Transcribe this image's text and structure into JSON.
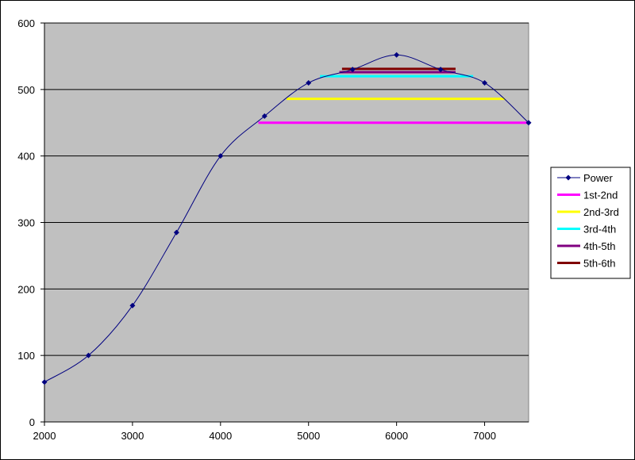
{
  "chart_data": {
    "type": "line",
    "title": "",
    "xlabel": "",
    "ylabel": "",
    "xlim": [
      2000,
      7500
    ],
    "ylim": [
      0,
      600
    ],
    "xticks": [
      2000,
      3000,
      4000,
      5000,
      6000,
      7000
    ],
    "yticks": [
      0,
      100,
      200,
      300,
      400,
      500,
      600
    ],
    "grid": "horizontal",
    "legend_position": "right",
    "plot_background": "#c0c0c0",
    "series": [
      {
        "name": "Power",
        "color": "#000080",
        "marker": "diamond",
        "x": [
          2000,
          2500,
          3000,
          3500,
          4000,
          4500,
          5000,
          5500,
          6000,
          6500,
          7000,
          7500
        ],
        "y": [
          60,
          100,
          175,
          285,
          400,
          460,
          510,
          530,
          552,
          530,
          510,
          450
        ]
      },
      {
        "name": "1st-2nd",
        "color": "#ff00ff",
        "x": [
          4430,
          7500
        ],
        "y": [
          450,
          450
        ]
      },
      {
        "name": "2nd-3rd",
        "color": "#ffff00",
        "x": [
          4750,
          7230
        ],
        "y": [
          486,
          486
        ]
      },
      {
        "name": "3rd-4th",
        "color": "#00ffff",
        "x": [
          5130,
          6870
        ],
        "y": [
          520,
          520
        ]
      },
      {
        "name": "4th-5th",
        "color": "#800080",
        "x": [
          5350,
          6670
        ],
        "y": [
          526,
          526
        ]
      },
      {
        "name": "5th-6th",
        "color": "#800000",
        "x": [
          5380,
          6670
        ],
        "y": [
          531,
          531
        ]
      }
    ]
  }
}
